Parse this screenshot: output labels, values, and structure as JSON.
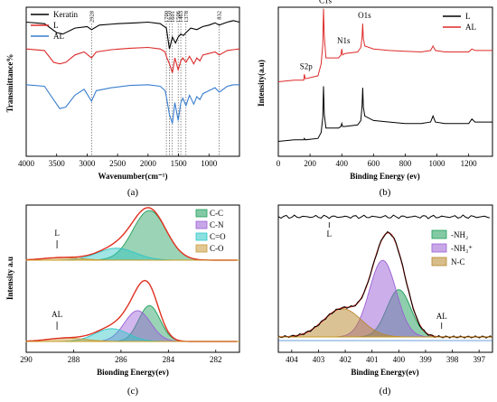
{
  "chart_data": [
    {
      "panel": "(a)",
      "type": "line",
      "xlabel": "Wavenumber(cm⁻¹)",
      "ylabel": "Transmittance%",
      "xlim": [
        4000,
        500
      ],
      "xticks": [
        "4000",
        "3500",
        "3000",
        "2500",
        "2000",
        "1500",
        "1000"
      ],
      "legend_position": "top-left",
      "peak_labels": [
        "2928",
        "1700",
        "1650",
        "1601",
        "1506",
        "1463",
        "1378",
        "832"
      ],
      "peak_positions": [
        2928,
        1700,
        1650,
        1601,
        1506,
        1463,
        1378,
        832
      ],
      "series": [
        {
          "name": "Keratin",
          "color": "#000000",
          "x": [
            4000,
            3700,
            3500,
            3400,
            3200,
            3000,
            2928,
            2800,
            2500,
            2200,
            2000,
            1800,
            1700,
            1650,
            1601,
            1550,
            1506,
            1463,
            1420,
            1378,
            1300,
            1200,
            1100,
            1000,
            900,
            832,
            700,
            600,
            500
          ],
          "y": [
            0.9,
            0.89,
            0.83,
            0.82,
            0.86,
            0.87,
            0.85,
            0.88,
            0.89,
            0.895,
            0.9,
            0.89,
            0.86,
            0.72,
            0.8,
            0.76,
            0.8,
            0.82,
            0.81,
            0.83,
            0.86,
            0.85,
            0.87,
            0.88,
            0.895,
            0.88,
            0.9,
            0.91,
            0.9
          ]
        },
        {
          "name": "L",
          "color": "#dd2a2a",
          "x": [
            4000,
            3700,
            3550,
            3450,
            3350,
            3200,
            3050,
            2928,
            2850,
            2600,
            2300,
            2000,
            1800,
            1720,
            1700,
            1650,
            1601,
            1560,
            1506,
            1463,
            1430,
            1378,
            1320,
            1250,
            1200,
            1150,
            1100,
            1000,
            900,
            832,
            700,
            600,
            500
          ],
          "y": [
            0.72,
            0.71,
            0.63,
            0.62,
            0.63,
            0.68,
            0.7,
            0.66,
            0.7,
            0.715,
            0.725,
            0.73,
            0.72,
            0.7,
            0.67,
            0.62,
            0.56,
            0.66,
            0.58,
            0.64,
            0.66,
            0.63,
            0.67,
            0.62,
            0.66,
            0.64,
            0.68,
            0.69,
            0.7,
            0.68,
            0.71,
            0.715,
            0.72
          ]
        },
        {
          "name": "AL",
          "color": "#3a7fcf",
          "x": [
            4000,
            3700,
            3550,
            3450,
            3350,
            3200,
            3050,
            2928,
            2850,
            2600,
            2300,
            2000,
            1800,
            1720,
            1700,
            1650,
            1601,
            1560,
            1506,
            1463,
            1430,
            1378,
            1320,
            1250,
            1200,
            1150,
            1100,
            1000,
            900,
            832,
            700,
            600,
            500
          ],
          "y": [
            0.48,
            0.47,
            0.38,
            0.32,
            0.33,
            0.41,
            0.45,
            0.37,
            0.44,
            0.46,
            0.475,
            0.48,
            0.47,
            0.44,
            0.4,
            0.28,
            0.22,
            0.36,
            0.24,
            0.36,
            0.39,
            0.34,
            0.41,
            0.35,
            0.4,
            0.38,
            0.42,
            0.44,
            0.46,
            0.43,
            0.47,
            0.48,
            0.48
          ]
        }
      ]
    },
    {
      "panel": "(b)",
      "type": "line",
      "xlabel": "Binding Energy (ev)",
      "ylabel": "Intensity(a.u)",
      "xlim": [
        0,
        1350
      ],
      "xticks": [
        "0",
        "200",
        "400",
        "600",
        "800",
        "1000",
        "1200"
      ],
      "legend_position": "top-right",
      "peak_labels": [
        {
          "text": "C1s",
          "x": 285
        },
        {
          "text": "N1s",
          "x": 400
        },
        {
          "text": "O1s",
          "x": 532
        },
        {
          "text": "S2p",
          "x": 164
        }
      ],
      "series": [
        {
          "name": "L",
          "color": "#000000",
          "x": [
            0,
            100,
            160,
            164,
            170,
            250,
            270,
            280,
            285,
            290,
            300,
            380,
            395,
            400,
            405,
            420,
            500,
            520,
            528,
            532,
            536,
            545,
            600,
            700,
            800,
            900,
            960,
            975,
            990,
            1050,
            1150,
            1200,
            1220,
            1240,
            1300,
            1350
          ],
          "y": [
            0.1,
            0.11,
            0.11,
            0.12,
            0.11,
            0.12,
            0.16,
            0.26,
            0.47,
            0.28,
            0.19,
            0.19,
            0.2,
            0.22,
            0.2,
            0.2,
            0.21,
            0.24,
            0.34,
            0.46,
            0.33,
            0.27,
            0.24,
            0.23,
            0.22,
            0.22,
            0.23,
            0.27,
            0.23,
            0.22,
            0.22,
            0.22,
            0.25,
            0.23,
            0.23,
            0.23
          ]
        },
        {
          "name": "AL",
          "color": "#dd2a2a",
          "x": [
            0,
            100,
            160,
            164,
            170,
            250,
            270,
            280,
            285,
            290,
            300,
            380,
            395,
            400,
            405,
            420,
            500,
            520,
            528,
            532,
            536,
            545,
            600,
            700,
            800,
            900,
            960,
            975,
            990,
            1050,
            1150,
            1200,
            1220,
            1240,
            1300,
            1350
          ],
          "y": [
            0.5,
            0.51,
            0.51,
            0.55,
            0.52,
            0.54,
            0.62,
            0.75,
            0.99,
            0.8,
            0.66,
            0.66,
            0.68,
            0.72,
            0.68,
            0.69,
            0.7,
            0.73,
            0.8,
            0.89,
            0.79,
            0.74,
            0.72,
            0.71,
            0.705,
            0.7,
            0.71,
            0.74,
            0.71,
            0.7,
            0.7,
            0.7,
            0.72,
            0.71,
            0.71,
            0.71
          ]
        }
      ]
    },
    {
      "panel": "(c)",
      "type": "area",
      "xlabel": "Bionding Energy(ev)",
      "ylabel": "Intensity a.u",
      "xlim": [
        290,
        281
      ],
      "xticks": [
        "290",
        "288",
        "286",
        "284",
        "282"
      ],
      "legend_position": "top-right",
      "legend": [
        {
          "name": "C-C",
          "color": "#1e9e5a"
        },
        {
          "name": "C-N",
          "color": "#9a5fd6"
        },
        {
          "name": "C=O",
          "color": "#2ec6c6"
        },
        {
          "name": "C-O",
          "color": "#c89a3a"
        }
      ],
      "curve_labels": [
        "L",
        "AL"
      ],
      "components": [
        {
          "group": "L",
          "name": "C-C",
          "center": 284.8,
          "amp": 0.58,
          "width": 0.7,
          "offset": 0.0
        },
        {
          "group": "L",
          "name": "C=O",
          "center": 286.2,
          "amp": 0.14,
          "width": 0.8,
          "offset": 0.0
        },
        {
          "group": "L",
          "name": "C-O",
          "center": 288.5,
          "amp": 0.03,
          "width": 0.8,
          "offset": 0.0
        },
        {
          "group": "AL",
          "name": "C-C",
          "center": 284.8,
          "amp": 0.42,
          "width": 0.45,
          "offset": -1.0
        },
        {
          "group": "AL",
          "name": "C-N",
          "center": 285.3,
          "amp": 0.36,
          "width": 0.55,
          "offset": -1.0
        },
        {
          "group": "AL",
          "name": "C=O",
          "center": 286.4,
          "amp": 0.15,
          "width": 0.7,
          "offset": -1.0
        },
        {
          "group": "AL",
          "name": "C-O",
          "center": 288.3,
          "amp": 0.04,
          "width": 0.8,
          "offset": -1.0
        }
      ]
    },
    {
      "panel": "(d)",
      "type": "area",
      "xlabel": "Binding Energy(ev)",
      "ylabel": "",
      "xlim": [
        404.5,
        396.5
      ],
      "xticks": [
        "404",
        "403",
        "402",
        "401",
        "400",
        "399",
        "398",
        "397"
      ],
      "legend_position": "top-right",
      "legend": [
        {
          "name": "-NH₂",
          "color": "#1e9e5a"
        },
        {
          "name": "-NH₃⁺",
          "color": "#9a5fd6"
        },
        {
          "name": "N-C",
          "color": "#b8862a"
        }
      ],
      "curve_labels": [
        "L",
        "AL"
      ],
      "components": [
        {
          "name": "-NH₂",
          "center": 400.0,
          "amp": 0.42,
          "width": 0.45
        },
        {
          "name": "-NH₃⁺",
          "center": 400.6,
          "amp": 0.68,
          "width": 0.5
        },
        {
          "name": "N-C",
          "center": 402.1,
          "amp": 0.25,
          "width": 0.7
        }
      ]
    }
  ]
}
